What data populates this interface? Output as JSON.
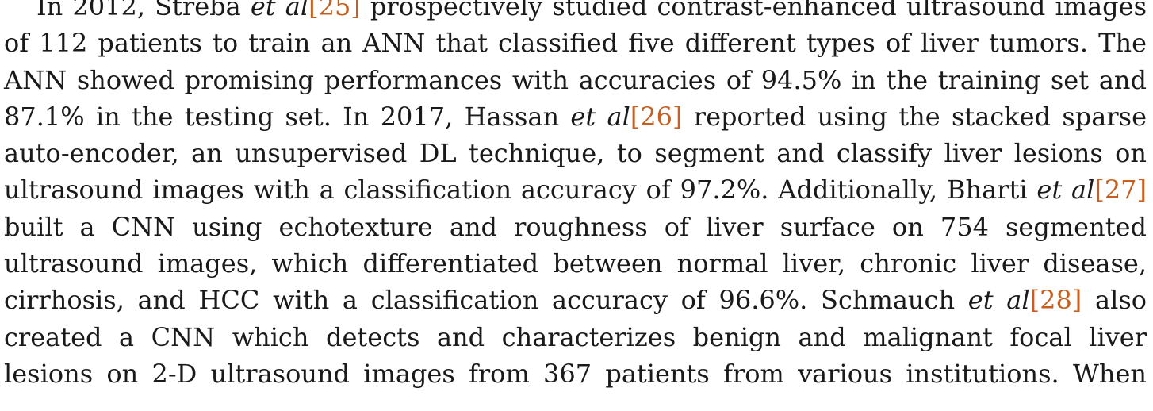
{
  "paragraph": {
    "line0": {
      "a": "In 2012, Streba ",
      "b": "et al",
      "ref": "[25]",
      "c": " prospectively studied contrast-enhanced ultrasound images"
    },
    "line1": "of 112 patients to train an ANN that classified five different types of liver tumors. The",
    "line2": "ANN showed promising performances with accuracies of 94.5% in the training set and",
    "line3": {
      "a": "87.1% in the testing set. In 2017, Hassan ",
      "b": "et al",
      "ref": "[26]",
      "c": " reported using the stacked sparse"
    },
    "line4": "auto-encoder, an unsupervised DL technique, to segment and classify liver lesions on",
    "line5": {
      "a": "ultrasound images with a classification accuracy of 97.2%. Additionally, Bharti ",
      "b": "et al",
      "ref": "[27]"
    },
    "line6": "built a CNN using echotexture and roughness of liver surface on 754 segmented",
    "line7": "ultrasound images, which differentiated between normal liver, chronic liver disease,",
    "line8": {
      "a": "cirrhosis, and HCC with a classification accuracy of 96.6%. Schmauch ",
      "b": "et al",
      "ref": "[28]",
      "c": " also"
    },
    "line9": "created a CNN which detects and characterizes benign and malignant focal liver",
    "line10": "lesions on 2-D ultrasound images from 367 patients from various institutions. When"
  }
}
